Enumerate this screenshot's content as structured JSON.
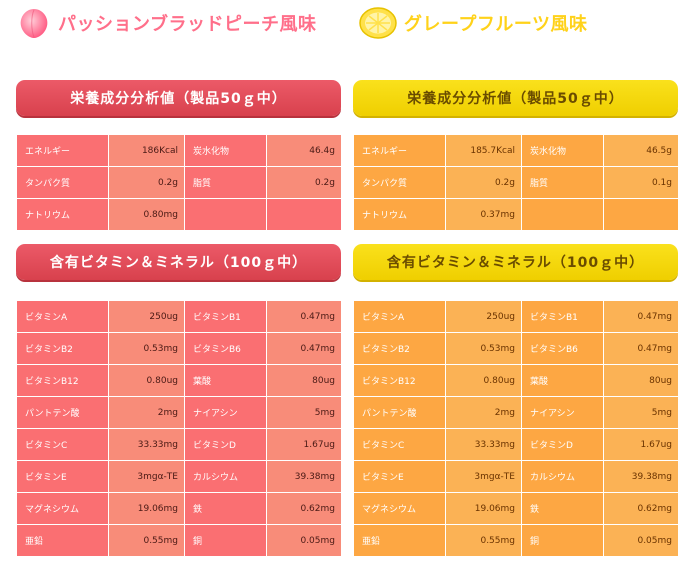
{
  "flavors": {
    "red": {
      "title": "パッションブラッドピーチ風味",
      "icon": "peach-icon",
      "color": "#ff6f8a"
    },
    "yellow": {
      "title": "グレープフルーツ風味",
      "icon": "grapefruit-icon",
      "color": "#ffd21a"
    }
  },
  "red": {
    "nutrition_title": "栄養成分分析値（製品50ｇ中）",
    "nutrition": [
      {
        "l1": "エネルギー",
        "v1": "186Kcal",
        "l2": "炭水化物",
        "v2": "46.4g"
      },
      {
        "l1": "タンパク質",
        "v1": "0.2g",
        "l2": "脂質",
        "v2": "0.2g"
      },
      {
        "l1": "ナトリウム",
        "v1": "0.80mg",
        "l2": "",
        "v2": ""
      }
    ],
    "vitamin_title": "含有ビタミン＆ミネラル（100ｇ中）",
    "vitamins": [
      {
        "l1": "ビタミンA",
        "v1": "250ug",
        "l2": "ビタミンB1",
        "v2": "0.47mg"
      },
      {
        "l1": "ビタミンB2",
        "v1": "0.53mg",
        "l2": "ビタミンB6",
        "v2": "0.47mg"
      },
      {
        "l1": "ビタミンB12",
        "v1": "0.80ug",
        "l2": "葉酸",
        "v2": "80ug"
      },
      {
        "l1": "パントテン酸",
        "v1": "2mg",
        "l2": "ナイアシン",
        "v2": "5mg"
      },
      {
        "l1": "ビタミンC",
        "v1": "33.33mg",
        "l2": "ビタミンD",
        "v2": "1.67ug"
      },
      {
        "l1": "ビタミンE",
        "v1": "3mgα-TE",
        "l2": "カルシウム",
        "v2": "39.38mg"
      },
      {
        "l1": "マグネシウム",
        "v1": "19.06mg",
        "l2": "鉄",
        "v2": "0.62mg"
      },
      {
        "l1": "亜鉛",
        "v1": "0.55mg",
        "l2": "銅",
        "v2": "0.05mg"
      }
    ]
  },
  "yellow": {
    "nutrition_title": "栄養成分分析値（製品50ｇ中）",
    "nutrition": [
      {
        "l1": "エネルギー",
        "v1": "185.7Kcal",
        "l2": "炭水化物",
        "v2": "46.5g"
      },
      {
        "l1": "タンパク質",
        "v1": "0.2g",
        "l2": "脂質",
        "v2": "0.1g"
      },
      {
        "l1": "ナトリウム",
        "v1": "0.37mg",
        "l2": "",
        "v2": ""
      }
    ],
    "vitamin_title": "含有ビタミン＆ミネラル（100ｇ中）",
    "vitamins": [
      {
        "l1": "ビタミンA",
        "v1": "250ug",
        "l2": "ビタミンB1",
        "v2": "0.47mg"
      },
      {
        "l1": "ビタミンB2",
        "v1": "0.53mg",
        "l2": "ビタミンB6",
        "v2": "0.47mg"
      },
      {
        "l1": "ビタミンB12",
        "v1": "0.80ug",
        "l2": "葉酸",
        "v2": "80ug"
      },
      {
        "l1": "パントテン酸",
        "v1": "2mg",
        "l2": "ナイアシン",
        "v2": "5mg"
      },
      {
        "l1": "ビタミンC",
        "v1": "33.33mg",
        "l2": "ビタミンD",
        "v2": "1.67ug"
      },
      {
        "l1": "ビタミンE",
        "v1": "3mgα-TE",
        "l2": "カルシウム",
        "v2": "39.38mg"
      },
      {
        "l1": "マグネシウム",
        "v1": "19.06mg",
        "l2": "鉄",
        "v2": "0.62mg"
      },
      {
        "l1": "亜鉛",
        "v1": "0.55mg",
        "l2": "銅",
        "v2": "0.05mg"
      }
    ]
  }
}
